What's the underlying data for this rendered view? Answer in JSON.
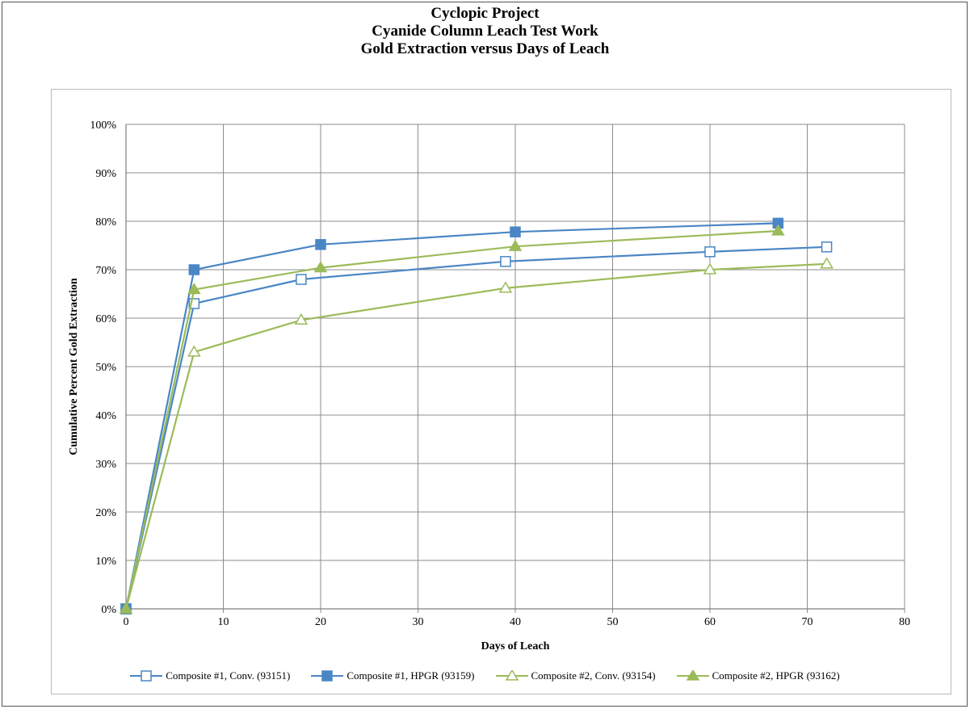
{
  "titles": {
    "line1": "Cyclopic Project",
    "line2": "Cyanide Column Leach Test Work",
    "line3": "Gold Extraction versus Days of Leach"
  },
  "colors": {
    "blue": "#4a86c5",
    "blue_fill": "#3f7fc0",
    "green": "#9bbb59",
    "green_fill": "#8db350",
    "grid": "#8c8c8c"
  },
  "chart_data": {
    "type": "line",
    "title": "Cyclopic Project\nCyanide Column Leach Test Work\nGold Extraction versus Days of Leach",
    "xlabel": "Days of Leach",
    "ylabel": "Cumulative Percent Gold Extraction",
    "xlim": [
      0,
      80
    ],
    "ylim": [
      0,
      100
    ],
    "x_ticks": [
      "0",
      "10",
      "20",
      "30",
      "40",
      "50",
      "60",
      "70",
      "80"
    ],
    "y_ticks": [
      "0%",
      "10%",
      "20%",
      "30%",
      "40%",
      "50%",
      "60%",
      "70%",
      "80%",
      "90%",
      "100%"
    ],
    "grid": true,
    "legend_position": "bottom",
    "series": [
      {
        "name": "Composite #1, Conv. (93151)",
        "color": "#4a86c5",
        "marker": "square-open",
        "x": [
          0,
          7,
          18,
          39,
          60,
          72
        ],
        "y": [
          0,
          63,
          68,
          71.7,
          73.7,
          74.7
        ]
      },
      {
        "name": "Composite #1, HPGR (93159)",
        "color": "#4a86c5",
        "marker": "square-filled",
        "x": [
          0,
          7,
          20,
          40,
          67
        ],
        "y": [
          0,
          70,
          75.2,
          77.8,
          79.6
        ]
      },
      {
        "name": "Composite #2, Conv. (93154)",
        "color": "#9bbb59",
        "marker": "triangle-open",
        "x": [
          0,
          7,
          18,
          39,
          60,
          72
        ],
        "y": [
          0,
          53,
          59.6,
          66.2,
          70,
          71.2
        ]
      },
      {
        "name": "Composite #2, HPGR (93162)",
        "color": "#9bbb59",
        "marker": "triangle-filled",
        "x": [
          0,
          7,
          20,
          40,
          67
        ],
        "y": [
          0,
          65.9,
          70.4,
          74.8,
          78
        ]
      }
    ]
  }
}
